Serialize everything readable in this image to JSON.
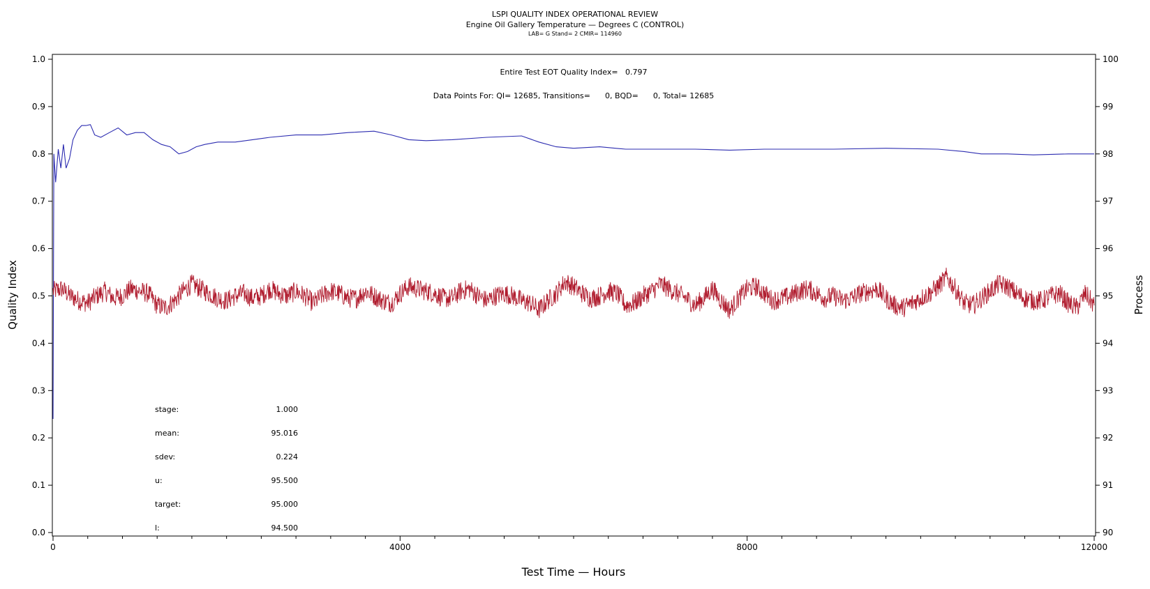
{
  "header": {
    "title": "LSPI QUALITY INDEX OPERATIONAL REVIEW",
    "subtitle": "Engine Oil Gallery Temperature — Degrees C (CONTROL)",
    "meta": "LAB= G Stand= 2 CMIR= 114960"
  },
  "annotations": {
    "quality_index_text": "Entire Test EOT Quality Index=   0.797",
    "data_points_text": "Data Points For: QI= 12685, Transitions=      0, BQD=      0, Total= 12685"
  },
  "stats": [
    {
      "label": "stage:",
      "value": "1.000"
    },
    {
      "label": "mean:",
      "value": "95.016"
    },
    {
      "label": "sdev:",
      "value": "0.224"
    },
    {
      "label": "u:",
      "value": "95.500"
    },
    {
      "label": "target:",
      "value": "95.000"
    },
    {
      "label": "l:",
      "value": "94.500"
    }
  ],
  "chart_data": {
    "type": "line",
    "xlabel": "Test Time — Hours",
    "ylabel": "Quality Index",
    "y2label": "Process",
    "xlim": [
      0,
      12000
    ],
    "ylim": [
      0.0,
      1.0
    ],
    "y2lim": [
      90,
      100
    ],
    "x_ticks": [
      "0",
      "4000",
      "8000",
      "12000"
    ],
    "y_ticks": [
      "0.0",
      "0.1",
      "0.2",
      "0.3",
      "0.4",
      "0.5",
      "0.6",
      "0.7",
      "0.8",
      "0.9",
      "1.0"
    ],
    "y2_ticks": [
      "90",
      "91",
      "92",
      "93",
      "94",
      "95",
      "96",
      "97",
      "98",
      "99",
      "100"
    ],
    "series": [
      {
        "axis": "left",
        "color": "#2b2bb0",
        "x": [
          0,
          10,
          30,
          60,
          90,
          120,
          150,
          190,
          230,
          280,
          330,
          380,
          430,
          480,
          550,
          650,
          750,
          850,
          950,
          1050,
          1150,
          1250,
          1350,
          1450,
          1550,
          1650,
          1750,
          1900,
          2100,
          2300,
          2500,
          2800,
          3100,
          3400,
          3700,
          3900,
          4100,
          4300,
          4600,
          5000,
          5400,
          5600,
          5800,
          6000,
          6300,
          6600,
          7000,
          7400,
          7800,
          8200,
          8600,
          9000,
          9600,
          10200,
          10500,
          10700,
          11000,
          11300,
          11700,
          12000
        ],
        "values": [
          0.24,
          0.8,
          0.74,
          0.81,
          0.77,
          0.82,
          0.77,
          0.79,
          0.83,
          0.85,
          0.86,
          0.86,
          0.862,
          0.84,
          0.835,
          0.845,
          0.855,
          0.84,
          0.845,
          0.845,
          0.83,
          0.82,
          0.815,
          0.8,
          0.805,
          0.815,
          0.82,
          0.825,
          0.825,
          0.83,
          0.835,
          0.84,
          0.84,
          0.845,
          0.848,
          0.84,
          0.83,
          0.828,
          0.83,
          0.835,
          0.838,
          0.825,
          0.815,
          0.812,
          0.815,
          0.81,
          0.81,
          0.81,
          0.808,
          0.81,
          0.81,
          0.81,
          0.812,
          0.81,
          0.805,
          0.8,
          0.8,
          0.798,
          0.8,
          0.8
        ]
      },
      {
        "axis": "right",
        "color": "#b01c2e",
        "x": [
          0,
          100,
          200,
          300,
          400,
          500,
          600,
          700,
          800,
          900,
          1000,
          1100,
          1200,
          1300,
          1400,
          1500,
          1600,
          1700,
          1800,
          1900,
          2000,
          2100,
          2200,
          2300,
          2400,
          2500,
          2600,
          2700,
          2800,
          2900,
          3000,
          3100,
          3200,
          3300,
          3400,
          3500,
          3600,
          3700,
          3800,
          3900,
          4000,
          4100,
          4200,
          4300,
          4400,
          4500,
          4600,
          4700,
          4800,
          4900,
          5000,
          5100,
          5200,
          5300,
          5400,
          5500,
          5600,
          5700,
          5800,
          5900,
          6000,
          6100,
          6200,
          6300,
          6400,
          6500,
          6600,
          6700,
          6800,
          6900,
          7000,
          7100,
          7200,
          7300,
          7400,
          7500,
          7600,
          7700,
          7800,
          7900,
          8000,
          8100,
          8200,
          8300,
          8400,
          8500,
          8600,
          8700,
          8800,
          8900,
          9000,
          9100,
          9200,
          9300,
          9400,
          9500,
          9600,
          9700,
          9800,
          9900,
          10000,
          10100,
          10200,
          10300,
          10400,
          10500,
          10600,
          10700,
          10800,
          10900,
          11000,
          11100,
          11200,
          11300,
          11400,
          11500,
          11600,
          11700,
          11800,
          11900,
          12000
        ],
        "values": [
          95.1,
          95.15,
          95.0,
          94.9,
          94.85,
          95.0,
          95.1,
          94.95,
          95.0,
          95.15,
          95.1,
          95.05,
          94.8,
          94.75,
          94.9,
          95.1,
          95.25,
          95.15,
          95.05,
          94.95,
          94.9,
          95.0,
          95.05,
          94.95,
          95.0,
          95.15,
          95.05,
          95.0,
          95.1,
          95.0,
          94.85,
          95.0,
          95.1,
          95.05,
          94.95,
          94.95,
          95.1,
          95.0,
          94.9,
          94.85,
          95.05,
          95.2,
          95.15,
          95.1,
          95.05,
          94.95,
          94.95,
          95.1,
          95.15,
          95.0,
          94.9,
          95.0,
          95.05,
          95.0,
          94.9,
          94.85,
          94.7,
          94.9,
          95.05,
          95.3,
          95.2,
          95.05,
          94.95,
          95.0,
          95.1,
          95.05,
          94.8,
          94.85,
          95.0,
          95.1,
          95.25,
          95.15,
          95.05,
          94.95,
          94.8,
          94.95,
          95.15,
          94.9,
          94.7,
          94.95,
          95.15,
          95.2,
          95.05,
          94.9,
          94.95,
          95.0,
          95.1,
          95.15,
          95.05,
          94.95,
          95.0,
          94.9,
          94.95,
          95.05,
          95.1,
          95.15,
          94.95,
          94.8,
          94.75,
          94.85,
          94.95,
          95.05,
          95.2,
          95.4,
          95.15,
          94.85,
          94.8,
          94.95,
          95.1,
          95.25,
          95.2,
          95.05,
          94.95,
          94.9,
          94.9,
          95.0,
          95.05,
          94.85,
          94.75,
          95.05,
          94.8
        ]
      }
    ]
  }
}
